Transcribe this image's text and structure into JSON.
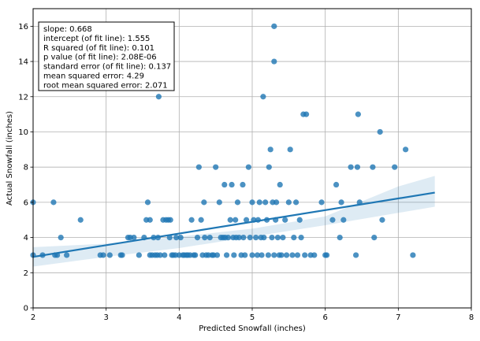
{
  "chart_data": {
    "type": "scatter",
    "xlabel": "Predicted Snowfall (inches)",
    "ylabel": "Actual Snowfall (inches)",
    "xlim": [
      2,
      8
    ],
    "ylim": [
      0,
      17
    ],
    "x_ticks": [
      "2",
      "3",
      "4",
      "5",
      "6",
      "7",
      "8"
    ],
    "y_ticks": [
      "0",
      "2",
      "4",
      "6",
      "8",
      "10",
      "12",
      "14",
      "16"
    ],
    "grid": true,
    "annotation_lines": [
      "slope: 0.668",
      "intercept (of fit line): 1.555",
      "R squared (of fit line): 0.101",
      "p value (of fit line):   2.08E-06",
      "standard error (of fit line): 0.137",
      "mean squared error: 4.29",
      "root mean squared error: 2.071"
    ],
    "regression": {
      "x": [
        2.0,
        7.5
      ],
      "y": [
        2.9,
        6.55
      ]
    },
    "confidence_band": {
      "x": [
        2.0,
        3.0,
        4.0,
        5.0,
        6.0,
        7.0,
        7.5
      ],
      "lower": [
        2.35,
        2.9,
        3.4,
        4.05,
        4.7,
        5.4,
        5.75
      ],
      "upper": [
        3.45,
        3.65,
        4.05,
        4.5,
        5.2,
        6.9,
        7.5
      ]
    },
    "points": [
      [
        2.0,
        3
      ],
      [
        2.0,
        6
      ],
      [
        2.13,
        3
      ],
      [
        2.28,
        6
      ],
      [
        2.3,
        3
      ],
      [
        2.33,
        3
      ],
      [
        2.38,
        4
      ],
      [
        2.46,
        3
      ],
      [
        2.65,
        5
      ],
      [
        2.92,
        3
      ],
      [
        2.96,
        3
      ],
      [
        3.05,
        3
      ],
      [
        3.2,
        3
      ],
      [
        3.22,
        3
      ],
      [
        3.3,
        4
      ],
      [
        3.33,
        4
      ],
      [
        3.38,
        4
      ],
      [
        3.45,
        3
      ],
      [
        3.52,
        4
      ],
      [
        3.55,
        5
      ],
      [
        3.57,
        6
      ],
      [
        3.6,
        3
      ],
      [
        3.6,
        5
      ],
      [
        3.63,
        3
      ],
      [
        3.65,
        4
      ],
      [
        3.67,
        3
      ],
      [
        3.7,
        3
      ],
      [
        3.71,
        4
      ],
      [
        3.72,
        12
      ],
      [
        3.74,
        3
      ],
      [
        3.78,
        5
      ],
      [
        3.8,
        3
      ],
      [
        3.82,
        5
      ],
      [
        3.85,
        5
      ],
      [
        3.87,
        4
      ],
      [
        3.88,
        5
      ],
      [
        3.9,
        3
      ],
      [
        3.92,
        3
      ],
      [
        3.95,
        3
      ],
      [
        3.96,
        4
      ],
      [
        4.0,
        3
      ],
      [
        4.02,
        4
      ],
      [
        4.05,
        3
      ],
      [
        4.07,
        3
      ],
      [
        4.1,
        3
      ],
      [
        4.12,
        3
      ],
      [
        4.15,
        3
      ],
      [
        4.17,
        5
      ],
      [
        4.2,
        3
      ],
      [
        4.22,
        3
      ],
      [
        4.25,
        4
      ],
      [
        4.27,
        8
      ],
      [
        4.3,
        5
      ],
      [
        4.32,
        3
      ],
      [
        4.34,
        6
      ],
      [
        4.35,
        4
      ],
      [
        4.37,
        3
      ],
      [
        4.4,
        3
      ],
      [
        4.42,
        4
      ],
      [
        4.45,
        3
      ],
      [
        4.47,
        3
      ],
      [
        4.5,
        8
      ],
      [
        4.52,
        3
      ],
      [
        4.55,
        6
      ],
      [
        4.57,
        4
      ],
      [
        4.6,
        4
      ],
      [
        4.62,
        7
      ],
      [
        4.63,
        4
      ],
      [
        4.65,
        3
      ],
      [
        4.67,
        4
      ],
      [
        4.7,
        5
      ],
      [
        4.72,
        7
      ],
      [
        4.74,
        4
      ],
      [
        4.75,
        3
      ],
      [
        4.77,
        5
      ],
      [
        4.78,
        4
      ],
      [
        4.8,
        6
      ],
      [
        4.82,
        4
      ],
      [
        4.85,
        3
      ],
      [
        4.87,
        7
      ],
      [
        4.88,
        4
      ],
      [
        4.9,
        3
      ],
      [
        4.92,
        5
      ],
      [
        4.95,
        8
      ],
      [
        4.97,
        4
      ],
      [
        5.0,
        3
      ],
      [
        5.0,
        6
      ],
      [
        5.02,
        5
      ],
      [
        5.05,
        4
      ],
      [
        5.07,
        3
      ],
      [
        5.08,
        5
      ],
      [
        5.1,
        6
      ],
      [
        5.12,
        4
      ],
      [
        5.13,
        3
      ],
      [
        5.15,
        12
      ],
      [
        5.16,
        4
      ],
      [
        5.18,
        6
      ],
      [
        5.2,
        5
      ],
      [
        5.22,
        3
      ],
      [
        5.23,
        8
      ],
      [
        5.25,
        9
      ],
      [
        5.27,
        4
      ],
      [
        5.28,
        6
      ],
      [
        5.3,
        16
      ],
      [
        5.3,
        14
      ],
      [
        5.3,
        3
      ],
      [
        5.32,
        5
      ],
      [
        5.33,
        6
      ],
      [
        5.35,
        4
      ],
      [
        5.37,
        3
      ],
      [
        5.38,
        7
      ],
      [
        5.4,
        3
      ],
      [
        5.42,
        4
      ],
      [
        5.45,
        5
      ],
      [
        5.47,
        3
      ],
      [
        5.5,
        6
      ],
      [
        5.52,
        9
      ],
      [
        5.55,
        3
      ],
      [
        5.57,
        4
      ],
      [
        5.6,
        6
      ],
      [
        5.62,
        3
      ],
      [
        5.65,
        5
      ],
      [
        5.67,
        4
      ],
      [
        5.7,
        11
      ],
      [
        5.72,
        3
      ],
      [
        5.74,
        11
      ],
      [
        5.8,
        3
      ],
      [
        5.85,
        3
      ],
      [
        5.95,
        6
      ],
      [
        6.0,
        3
      ],
      [
        6.02,
        3
      ],
      [
        6.1,
        5
      ],
      [
        6.15,
        7
      ],
      [
        6.2,
        4
      ],
      [
        6.22,
        6
      ],
      [
        6.25,
        5
      ],
      [
        6.35,
        8
      ],
      [
        6.42,
        3
      ],
      [
        6.44,
        8
      ],
      [
        6.45,
        11
      ],
      [
        6.47,
        6
      ],
      [
        6.65,
        8
      ],
      [
        6.67,
        4
      ],
      [
        6.75,
        10
      ],
      [
        6.78,
        5
      ],
      [
        6.95,
        8
      ],
      [
        7.1,
        9
      ],
      [
        7.2,
        3
      ]
    ]
  }
}
